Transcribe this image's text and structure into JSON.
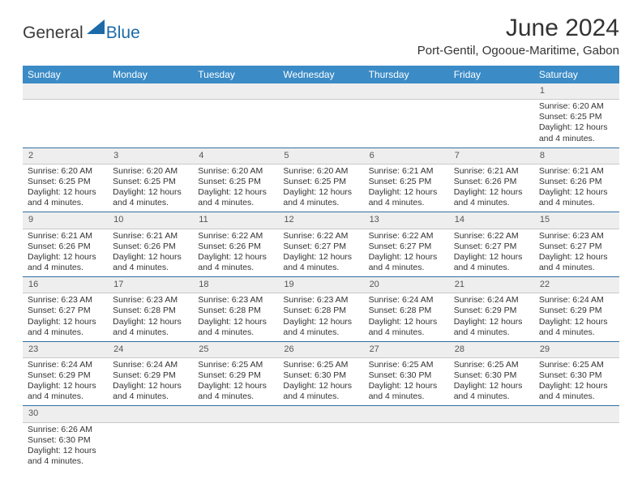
{
  "brand": {
    "part1": "General",
    "part2": "Blue",
    "shape_color": "#1c6aa8"
  },
  "title": "June 2024",
  "location": "Port-Gentil, Ogooue-Maritime, Gabon",
  "colors": {
    "header_bg": "#3b8bc6",
    "header_text": "#ffffff",
    "daynum_bg": "#eeeeee",
    "rule": "#2f6fa3",
    "body_text": "#333333"
  },
  "day_headers": [
    "Sunday",
    "Monday",
    "Tuesday",
    "Wednesday",
    "Thursday",
    "Friday",
    "Saturday"
  ],
  "weeks": [
    [
      null,
      null,
      null,
      null,
      null,
      null,
      {
        "n": "1",
        "sr": "Sunrise: 6:20 AM",
        "ss": "Sunset: 6:25 PM",
        "d1": "Daylight: 12 hours",
        "d2": "and 4 minutes."
      }
    ],
    [
      {
        "n": "2",
        "sr": "Sunrise: 6:20 AM",
        "ss": "Sunset: 6:25 PM",
        "d1": "Daylight: 12 hours",
        "d2": "and 4 minutes."
      },
      {
        "n": "3",
        "sr": "Sunrise: 6:20 AM",
        "ss": "Sunset: 6:25 PM",
        "d1": "Daylight: 12 hours",
        "d2": "and 4 minutes."
      },
      {
        "n": "4",
        "sr": "Sunrise: 6:20 AM",
        "ss": "Sunset: 6:25 PM",
        "d1": "Daylight: 12 hours",
        "d2": "and 4 minutes."
      },
      {
        "n": "5",
        "sr": "Sunrise: 6:20 AM",
        "ss": "Sunset: 6:25 PM",
        "d1": "Daylight: 12 hours",
        "d2": "and 4 minutes."
      },
      {
        "n": "6",
        "sr": "Sunrise: 6:21 AM",
        "ss": "Sunset: 6:25 PM",
        "d1": "Daylight: 12 hours",
        "d2": "and 4 minutes."
      },
      {
        "n": "7",
        "sr": "Sunrise: 6:21 AM",
        "ss": "Sunset: 6:26 PM",
        "d1": "Daylight: 12 hours",
        "d2": "and 4 minutes."
      },
      {
        "n": "8",
        "sr": "Sunrise: 6:21 AM",
        "ss": "Sunset: 6:26 PM",
        "d1": "Daylight: 12 hours",
        "d2": "and 4 minutes."
      }
    ],
    [
      {
        "n": "9",
        "sr": "Sunrise: 6:21 AM",
        "ss": "Sunset: 6:26 PM",
        "d1": "Daylight: 12 hours",
        "d2": "and 4 minutes."
      },
      {
        "n": "10",
        "sr": "Sunrise: 6:21 AM",
        "ss": "Sunset: 6:26 PM",
        "d1": "Daylight: 12 hours",
        "d2": "and 4 minutes."
      },
      {
        "n": "11",
        "sr": "Sunrise: 6:22 AM",
        "ss": "Sunset: 6:26 PM",
        "d1": "Daylight: 12 hours",
        "d2": "and 4 minutes."
      },
      {
        "n": "12",
        "sr": "Sunrise: 6:22 AM",
        "ss": "Sunset: 6:27 PM",
        "d1": "Daylight: 12 hours",
        "d2": "and 4 minutes."
      },
      {
        "n": "13",
        "sr": "Sunrise: 6:22 AM",
        "ss": "Sunset: 6:27 PM",
        "d1": "Daylight: 12 hours",
        "d2": "and 4 minutes."
      },
      {
        "n": "14",
        "sr": "Sunrise: 6:22 AM",
        "ss": "Sunset: 6:27 PM",
        "d1": "Daylight: 12 hours",
        "d2": "and 4 minutes."
      },
      {
        "n": "15",
        "sr": "Sunrise: 6:23 AM",
        "ss": "Sunset: 6:27 PM",
        "d1": "Daylight: 12 hours",
        "d2": "and 4 minutes."
      }
    ],
    [
      {
        "n": "16",
        "sr": "Sunrise: 6:23 AM",
        "ss": "Sunset: 6:27 PM",
        "d1": "Daylight: 12 hours",
        "d2": "and 4 minutes."
      },
      {
        "n": "17",
        "sr": "Sunrise: 6:23 AM",
        "ss": "Sunset: 6:28 PM",
        "d1": "Daylight: 12 hours",
        "d2": "and 4 minutes."
      },
      {
        "n": "18",
        "sr": "Sunrise: 6:23 AM",
        "ss": "Sunset: 6:28 PM",
        "d1": "Daylight: 12 hours",
        "d2": "and 4 minutes."
      },
      {
        "n": "19",
        "sr": "Sunrise: 6:23 AM",
        "ss": "Sunset: 6:28 PM",
        "d1": "Daylight: 12 hours",
        "d2": "and 4 minutes."
      },
      {
        "n": "20",
        "sr": "Sunrise: 6:24 AM",
        "ss": "Sunset: 6:28 PM",
        "d1": "Daylight: 12 hours",
        "d2": "and 4 minutes."
      },
      {
        "n": "21",
        "sr": "Sunrise: 6:24 AM",
        "ss": "Sunset: 6:29 PM",
        "d1": "Daylight: 12 hours",
        "d2": "and 4 minutes."
      },
      {
        "n": "22",
        "sr": "Sunrise: 6:24 AM",
        "ss": "Sunset: 6:29 PM",
        "d1": "Daylight: 12 hours",
        "d2": "and 4 minutes."
      }
    ],
    [
      {
        "n": "23",
        "sr": "Sunrise: 6:24 AM",
        "ss": "Sunset: 6:29 PM",
        "d1": "Daylight: 12 hours",
        "d2": "and 4 minutes."
      },
      {
        "n": "24",
        "sr": "Sunrise: 6:24 AM",
        "ss": "Sunset: 6:29 PM",
        "d1": "Daylight: 12 hours",
        "d2": "and 4 minutes."
      },
      {
        "n": "25",
        "sr": "Sunrise: 6:25 AM",
        "ss": "Sunset: 6:29 PM",
        "d1": "Daylight: 12 hours",
        "d2": "and 4 minutes."
      },
      {
        "n": "26",
        "sr": "Sunrise: 6:25 AM",
        "ss": "Sunset: 6:30 PM",
        "d1": "Daylight: 12 hours",
        "d2": "and 4 minutes."
      },
      {
        "n": "27",
        "sr": "Sunrise: 6:25 AM",
        "ss": "Sunset: 6:30 PM",
        "d1": "Daylight: 12 hours",
        "d2": "and 4 minutes."
      },
      {
        "n": "28",
        "sr": "Sunrise: 6:25 AM",
        "ss": "Sunset: 6:30 PM",
        "d1": "Daylight: 12 hours",
        "d2": "and 4 minutes."
      },
      {
        "n": "29",
        "sr": "Sunrise: 6:25 AM",
        "ss": "Sunset: 6:30 PM",
        "d1": "Daylight: 12 hours",
        "d2": "and 4 minutes."
      }
    ],
    [
      {
        "n": "30",
        "sr": "Sunrise: 6:26 AM",
        "ss": "Sunset: 6:30 PM",
        "d1": "Daylight: 12 hours",
        "d2": "and 4 minutes."
      },
      null,
      null,
      null,
      null,
      null,
      null
    ]
  ]
}
